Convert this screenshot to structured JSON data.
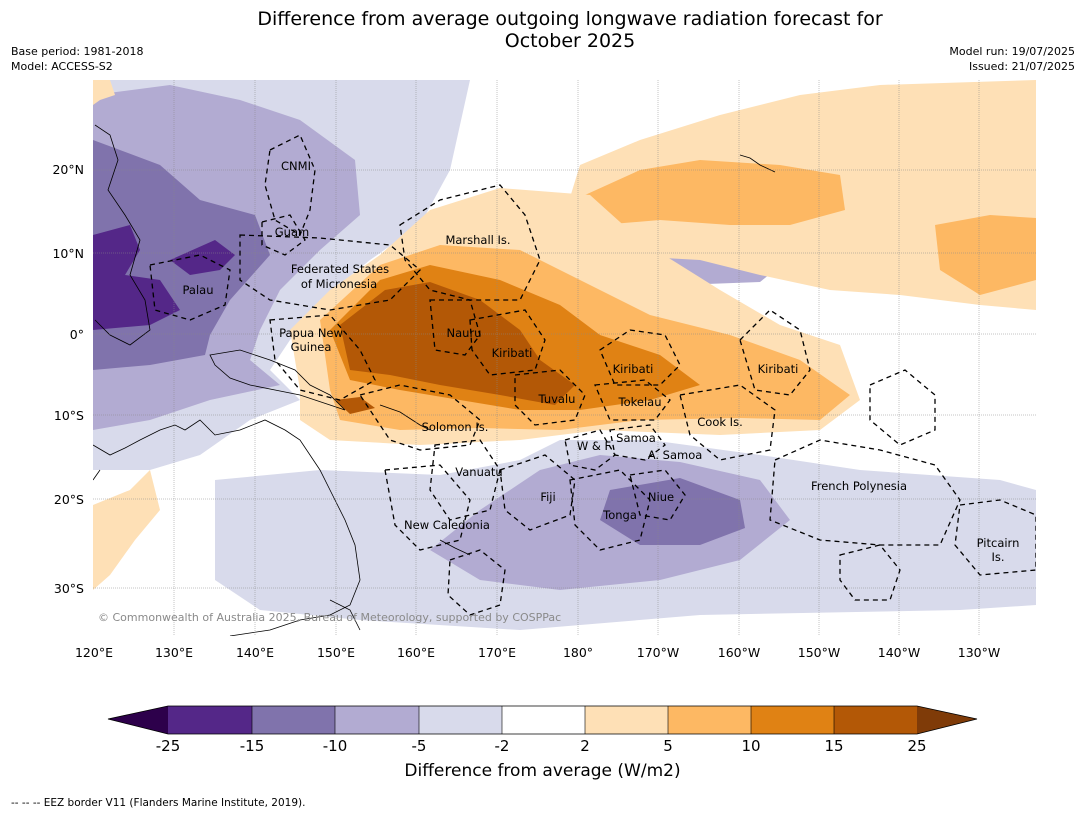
{
  "title": {
    "line1": "Difference from average outgoing longwave radiation forecast for",
    "line2": "October 2025"
  },
  "meta": {
    "base_period": "Base period: 1981-2018",
    "model": "Model: ACCESS-S2",
    "model_run": "Model run: 19/07/2025",
    "issued": "Issued: 21/07/2025"
  },
  "map": {
    "lon_labels": [
      "120°E",
      "130°E",
      "140°E",
      "150°E",
      "160°E",
      "170°E",
      "180°",
      "170°W",
      "160°W",
      "150°W",
      "140°W",
      "130°W"
    ],
    "lat_labels": [
      "20°N",
      "10°N",
      "0°",
      "10°S",
      "20°S",
      "30°S"
    ],
    "copyright": "© Commonwealth of Australia 2025, Bureau of Meteorology, supported by COSPPac",
    "region_labels": {
      "cnmi": "CNMI",
      "guam": "Guam",
      "marshall": "Marshall Is.",
      "fsm1": "Federated States",
      "fsm2": "of Micronesia",
      "palau": "Palau",
      "png1": "Papua New",
      "png2": "Guinea",
      "nauru": "Nauru",
      "kiribati_w": "Kiribati",
      "kiribati_c": "Kiribati",
      "kiribati_e": "Kiribati",
      "tuvalu": "Tuvalu",
      "tokelau": "Tokelau",
      "cook": "Cook Is.",
      "solomon": "Solomon Is.",
      "wf": "W & F",
      "samoa": "Samoa",
      "asamoa": "A. Samoa",
      "vanuatu": "Vanuatu",
      "fiji": "Fiji",
      "niue": "Niue",
      "tonga": "Tonga",
      "frpoly": "French Polynesia",
      "newcal": "New Caledonia",
      "pitcairn1": "Pitcairn",
      "pitcairn2": "Is."
    },
    "colors": {
      "p25": "#2d004b",
      "p15": "#542788",
      "p10": "#8073ac",
      "p5": "#b2abd2",
      "p2": "#d8daeb",
      "zero": "#ffffff",
      "o2": "#fee0b6",
      "o5": "#fdb863",
      "o10": "#e08214",
      "o15": "#b35806",
      "o25": "#7f3b08",
      "land": "#000000",
      "eez": "#000000",
      "grid": "#888888"
    }
  },
  "colorbar": {
    "title": "Difference from average (W/m2)",
    "ticks": [
      "-25",
      "-15",
      "-10",
      "-5",
      "-2",
      "2",
      "5",
      "10",
      "15",
      "25"
    ]
  },
  "footer": "--  --  -- EEZ border V11 (Flanders Marine Institute, 2019)."
}
